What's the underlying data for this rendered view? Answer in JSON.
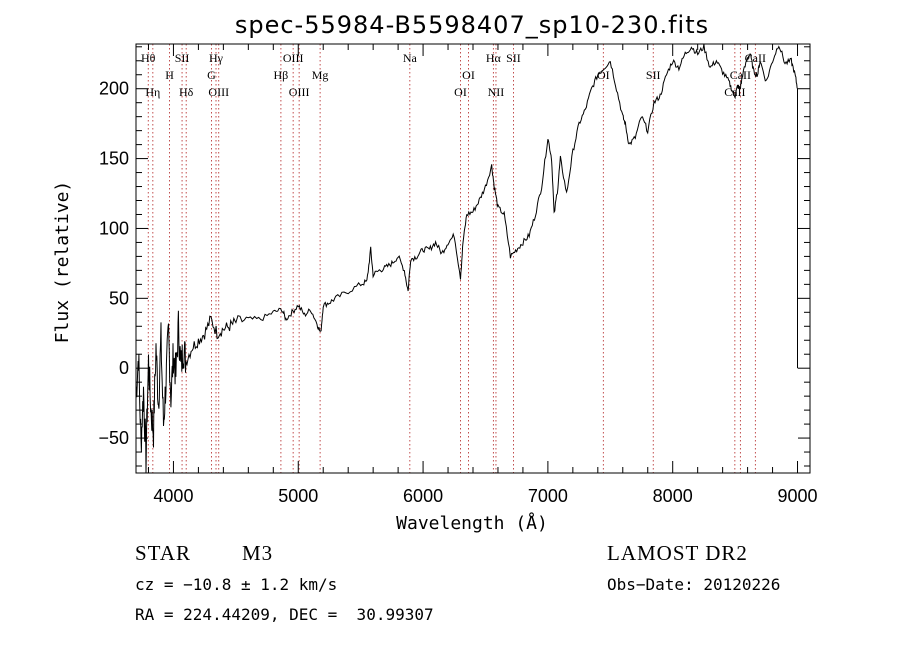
{
  "chart_data": {
    "type": "line",
    "title": "spec-55984-B5598407_sp10-230.fits",
    "xlabel": "Wavelength (Å)",
    "ylabel": "Flux (relative)",
    "xlim": [
      3700,
      9100
    ],
    "ylim": [
      -75,
      232
    ],
    "xticks": [
      4000,
      5000,
      6000,
      7000,
      8000,
      9000
    ],
    "yticks": [
      -50,
      0,
      50,
      100,
      150,
      200
    ],
    "grid": false,
    "series": [
      {
        "x": [
          3700,
          3720,
          3740,
          3760,
          3780,
          3800,
          3820,
          3840,
          3860,
          3880,
          3900,
          3920,
          3940,
          3960,
          3980,
          4000,
          4020,
          4040,
          4060,
          4080,
          4100,
          4150,
          4200,
          4250,
          4300,
          4350,
          4400,
          4450,
          4500,
          4600,
          4700,
          4800,
          4870,
          4900,
          4950,
          5000,
          5050,
          5100,
          5150,
          5180,
          5200,
          5250,
          5300,
          5400,
          5500,
          5550,
          5580,
          5600,
          5650,
          5700,
          5750,
          5800,
          5850,
          5880,
          5900,
          5950,
          6000,
          6050,
          6100,
          6150,
          6200,
          6250,
          6300,
          6320,
          6350,
          6400,
          6450,
          6500,
          6550,
          6570,
          6600,
          6650,
          6700,
          6750,
          6800,
          6850,
          6900,
          6950,
          7000,
          7030,
          7050,
          7080,
          7100,
          7150,
          7200,
          7250,
          7300,
          7350,
          7400,
          7450,
          7500,
          7550,
          7600,
          7620,
          7650,
          7700,
          7750,
          7800,
          7850,
          7900,
          7950,
          8000,
          8050,
          8100,
          8150,
          8200,
          8250,
          8300,
          8350,
          8400,
          8450,
          8480,
          8500,
          8520,
          8540,
          8560,
          8600,
          8620,
          8650,
          8680,
          8700,
          8750,
          8800,
          8850,
          8900,
          8950,
          8980,
          9000
        ],
        "y": [
          -20,
          10,
          -55,
          -15,
          -65,
          5,
          -30,
          -45,
          15,
          -25,
          20,
          -40,
          -10,
          25,
          -20,
          10,
          -5,
          30,
          0,
          15,
          5,
          15,
          20,
          25,
          35,
          25,
          28,
          30,
          33,
          35,
          35,
          40,
          42,
          35,
          40,
          45,
          38,
          42,
          32,
          25,
          45,
          47,
          50,
          55,
          60,
          62,
          85,
          67,
          70,
          72,
          75,
          80,
          70,
          55,
          78,
          80,
          85,
          85,
          90,
          82,
          90,
          95,
          65,
          90,
          110,
          112,
          120,
          130,
          145,
          130,
          115,
          110,
          80,
          85,
          90,
          95,
          110,
          130,
          165,
          150,
          110,
          130,
          150,
          125,
          155,
          175,
          185,
          200,
          210,
          215,
          220,
          200,
          180,
          175,
          160,
          165,
          180,
          170,
          190,
          195,
          210,
          220,
          215,
          225,
          230,
          225,
          230,
          215,
          220,
          212,
          205,
          198,
          195,
          202,
          200,
          210,
          222,
          225,
          212,
          210,
          220,
          205,
          220,
          232,
          218,
          220,
          210,
          200
        ]
      }
    ],
    "lines": [
      {
        "label": "Hθ",
        "wl": 3798,
        "row": 1
      },
      {
        "label": "Hη",
        "wl": 3835,
        "row": 3
      },
      {
        "label": "H",
        "wl": 3969,
        "row": 2
      },
      {
        "label": "SII",
        "wl": 4069,
        "row": 1
      },
      {
        "label": "Hδ",
        "wl": 4102,
        "row": 3
      },
      {
        "label": "Hγ",
        "wl": 4341,
        "row": 1
      },
      {
        "label": "G",
        "wl": 4305,
        "row": 2
      },
      {
        "label": "OIII",
        "wl": 4363,
        "row": 3
      },
      {
        "label": "OIII",
        "wl": 4959,
        "row": 1
      },
      {
        "label": "Hβ",
        "wl": 4861,
        "row": 2
      },
      {
        "label": "OIII",
        "wl": 5007,
        "row": 3
      },
      {
        "label": "Mg",
        "wl": 5175,
        "row": 2
      },
      {
        "label": "Na",
        "wl": 5894,
        "row": 1
      },
      {
        "label": "OI",
        "wl": 6364,
        "row": 2
      },
      {
        "label": "OI",
        "wl": 6300,
        "row": 3
      },
      {
        "label": "Hα",
        "wl": 6563,
        "row": 1
      },
      {
        "label": "SII",
        "wl": 6724,
        "row": 1
      },
      {
        "label": "NII",
        "wl": 6584,
        "row": 3
      },
      {
        "label": "OI",
        "wl": 7444,
        "row": 2
      },
      {
        "label": "SII",
        "wl": 7844,
        "row": 2
      },
      {
        "label": "CaII",
        "wl": 8662,
        "row": 1
      },
      {
        "label": "CaII",
        "wl": 8542,
        "row": 2
      },
      {
        "label": "CaII",
        "wl": 8498,
        "row": 3
      }
    ]
  },
  "info": {
    "class_label": "STAR",
    "subclass": "M3",
    "survey": "LAMOST DR2",
    "redshift": "cz = −10.8 ± 1.2 km/s",
    "obs_date": "Obs−Date: 20120226",
    "coords": "RA = 224.44209, DEC =  30.99307"
  }
}
